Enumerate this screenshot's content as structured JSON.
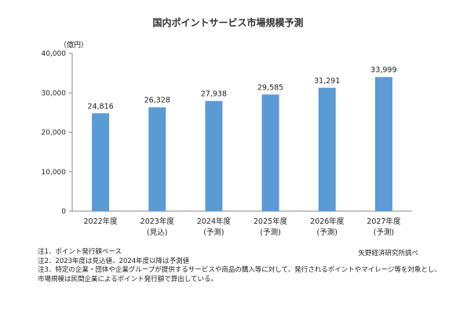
{
  "chart_data": {
    "type": "bar",
    "title": "国内ポイントサービス市場規模予測",
    "unit_label": "（億円）",
    "categories": [
      "2022年度",
      "2023年度",
      "2024年度",
      "2025年度",
      "2026年度",
      "2027年度"
    ],
    "category_sublabels": [
      "",
      "(見込)",
      "(予測)",
      "(予測)",
      "(予測)",
      "(予測)"
    ],
    "values": [
      24816,
      26328,
      27938,
      29585,
      31291,
      33999
    ],
    "value_labels": [
      "24,816",
      "26,328",
      "27,938",
      "29,585",
      "31,291",
      "33,999"
    ],
    "ylim": [
      0,
      40000
    ],
    "yticks": [
      0,
      10000,
      20000,
      30000,
      40000
    ],
    "ytick_labels": [
      "0",
      "10,000",
      "20,000",
      "30,000",
      "40,000"
    ],
    "bar_color": "#5b9bd5",
    "grid": false,
    "legend": "none"
  },
  "notes": [
    "注1．ポイント発行額ベース",
    "注2．2023年度は見込値、2024年度以降は予測値",
    "注3．特定の企業・団体や企業グループが提供するサービスや商品の購入等に対して、発行されるポイントやマイレージ等を対象とし、",
    "市場規模は民間企業によるポイント発行額で算出している。"
  ],
  "source": "矢野経済研究所調べ"
}
